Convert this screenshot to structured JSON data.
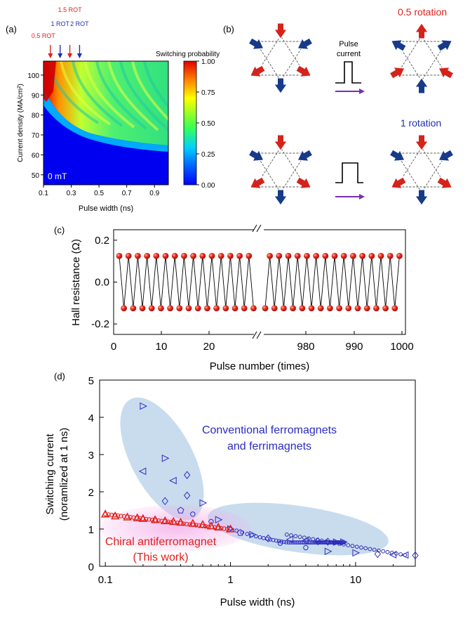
{
  "panel_a": {
    "label": "(a)",
    "markers": [
      {
        "text": "0.5 ROT",
        "color": "#e0201b",
        "pw": 0.15
      },
      {
        "text": "1 ROT",
        "color": "#1f2fb0",
        "pw": 0.22
      },
      {
        "text": "1.5 ROT",
        "color": "#e0201b",
        "pw": 0.29
      },
      {
        "text": "2 ROT",
        "color": "#1f2fb0",
        "pw": 0.36
      }
    ],
    "colorbar_title": "Switching probability",
    "colorbar_ticks": [
      "1.00",
      "0.75",
      "0.50",
      "0.25",
      "0.00"
    ],
    "field_label": "0 mT"
  },
  "panel_b": {
    "label": "(b)",
    "pulse_label_line1": "Pulse",
    "pulse_label_line2": "current",
    "rot_half": "0.5 rotation",
    "rot_one": "1 rotation",
    "rot_half_color": "#e0201b",
    "rot_one_color": "#1f2fb0"
  },
  "panel_c": {
    "label": "(c)"
  },
  "panel_d": {
    "label": "(d)",
    "anno_conv_1": "Conventional ferromagnets",
    "anno_conv_2": "and ferrimagnets",
    "anno_chiral_1": "Chiral antiferromagnet",
    "anno_chiral_2": "(This work)",
    "conv_color": "#2b2bc4",
    "chiral_color": "#e0201b"
  },
  "chart_data": [
    {
      "type": "heatmap",
      "xlabel": "Pulse width (ns)",
      "ylabel": "Current density (MA/cm²)",
      "xlim": [
        0.1,
        1.0
      ],
      "ylim": [
        45,
        107
      ],
      "xticks": [
        "0.1",
        "0.3",
        "0.5",
        "0.7",
        "0.9"
      ],
      "yticks": [
        "50",
        "60",
        "70",
        "80",
        "90",
        "100"
      ],
      "zlabel": "Switching probability",
      "zlim": [
        0,
        1
      ],
      "colormap": "jet",
      "threshold_curve": [
        [
          0.1,
          97
        ],
        [
          0.13,
          85
        ],
        [
          0.18,
          77
        ],
        [
          0.25,
          72
        ],
        [
          0.35,
          68
        ],
        [
          0.5,
          66
        ],
        [
          0.7,
          64
        ],
        [
          1.0,
          62
        ]
      ]
    },
    {
      "type": "scatter",
      "xlabel": "Pulse number (times)",
      "ylabel": "Hall resistance (Ω)",
      "xticks": [
        "0",
        "10",
        "20",
        "980",
        "990",
        "1000"
      ],
      "yticks": [
        "-0.2",
        "0.0",
        "0.2"
      ],
      "ylim": [
        -0.25,
        0.25
      ],
      "x_segments": [
        [
          0,
          29
        ],
        [
          971,
          1000
        ]
      ],
      "pattern": "alternating",
      "high_value": 0.125,
      "low_value": -0.125
    },
    {
      "type": "scatter",
      "xlabel": "Pulse width (ns)",
      "ylabel": "Switching current (noramlized at 1 ns)",
      "x_scale": "log",
      "xlim": [
        0.09,
        30
      ],
      "ylim": [
        0,
        5
      ],
      "xticks": [
        "0.1",
        "1",
        "10"
      ],
      "yticks": [
        "0",
        "1",
        "2",
        "3",
        "4",
        "5"
      ],
      "series": [
        {
          "name": "Conventional ferromagnets and ferrimagnets",
          "x": [
            0.2,
            0.3,
            0.45,
            0.2,
            0.35,
            0.3,
            0.45,
            0.6,
            0.8,
            0.4,
            0.5,
            0.7,
            1.0,
            1.5,
            2.0,
            3.0,
            4.0,
            5.0,
            6.0,
            7.0,
            8.0,
            1.2,
            2.5,
            4.0,
            6.0,
            10.0,
            15.0,
            20.0,
            25.0,
            30.0
          ],
          "y": [
            4.3,
            2.9,
            2.45,
            2.55,
            2.3,
            1.75,
            1.9,
            1.7,
            1.25,
            1.5,
            1.4,
            1.2,
            1.0,
            0.85,
            0.75,
            0.72,
            0.68,
            0.67,
            0.66,
            0.65,
            0.65,
            0.9,
            0.62,
            0.5,
            0.4,
            0.36,
            0.33,
            0.31,
            0.3,
            0.29
          ]
        },
        {
          "name": "Chiral antiferromagnet (This work)",
          "x": [
            0.1,
            0.12,
            0.15,
            0.18,
            0.2,
            0.25,
            0.3,
            0.35,
            0.4,
            0.5,
            0.6,
            0.7,
            0.8,
            1.0
          ],
          "y": [
            1.4,
            1.35,
            1.32,
            1.3,
            1.28,
            1.25,
            1.22,
            1.2,
            1.18,
            1.15,
            1.12,
            1.08,
            1.05,
            1.0
          ]
        }
      ]
    }
  ]
}
